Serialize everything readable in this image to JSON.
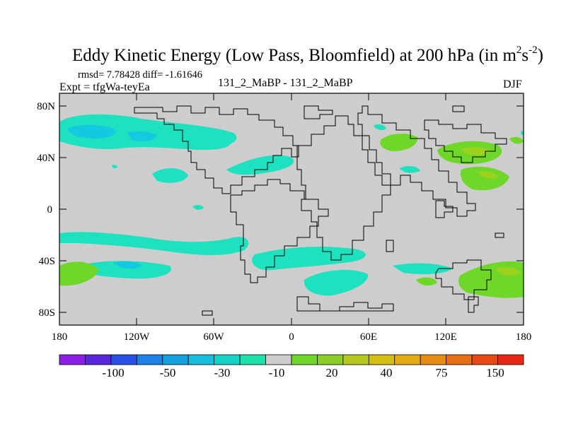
{
  "title": {
    "main": "Eddy Kinetic Energy (Low Pass, Bloomfield) at 200 hPa (in m",
    "sup1": "2",
    "mid": "s",
    "sup2": "-2",
    "close": ")"
  },
  "header": {
    "stats": "rmsd= 7.78428 diff= -1.61646",
    "expt": "Expt = tfgWa-teyEa",
    "case": "131_2_MaBP - 131_2_MaBP",
    "season": "DJF"
  },
  "axes": {
    "lat_labels": [
      "80N",
      "40N",
      "0",
      "40S",
      "80S"
    ],
    "lon_labels": [
      "180",
      "120W",
      "60W",
      "0",
      "60E",
      "120E",
      "180"
    ]
  },
  "colorbar": {
    "colors": [
      "#8c1ee6",
      "#5a28dc",
      "#2850e6",
      "#1e82e6",
      "#14a0dc",
      "#14bedc",
      "#14d2c8",
      "#1ee1aa",
      "#cdcdcd",
      "#6ed728",
      "#8ccd28",
      "#b4c81e",
      "#d2be14",
      "#e6aa14",
      "#e68c14",
      "#e66e14",
      "#e64a14",
      "#e62814"
    ],
    "labels": [
      "-100",
      "-50",
      "-30",
      "-10",
      "20",
      "40",
      "75",
      "150"
    ]
  },
  "legend_colors": {
    "background": "#cdcdcd",
    "negative": "#1ee1c0",
    "negative_strong": "#14c8e0",
    "positive": "#6ed728",
    "positive_strong": "#9cd21e"
  }
}
